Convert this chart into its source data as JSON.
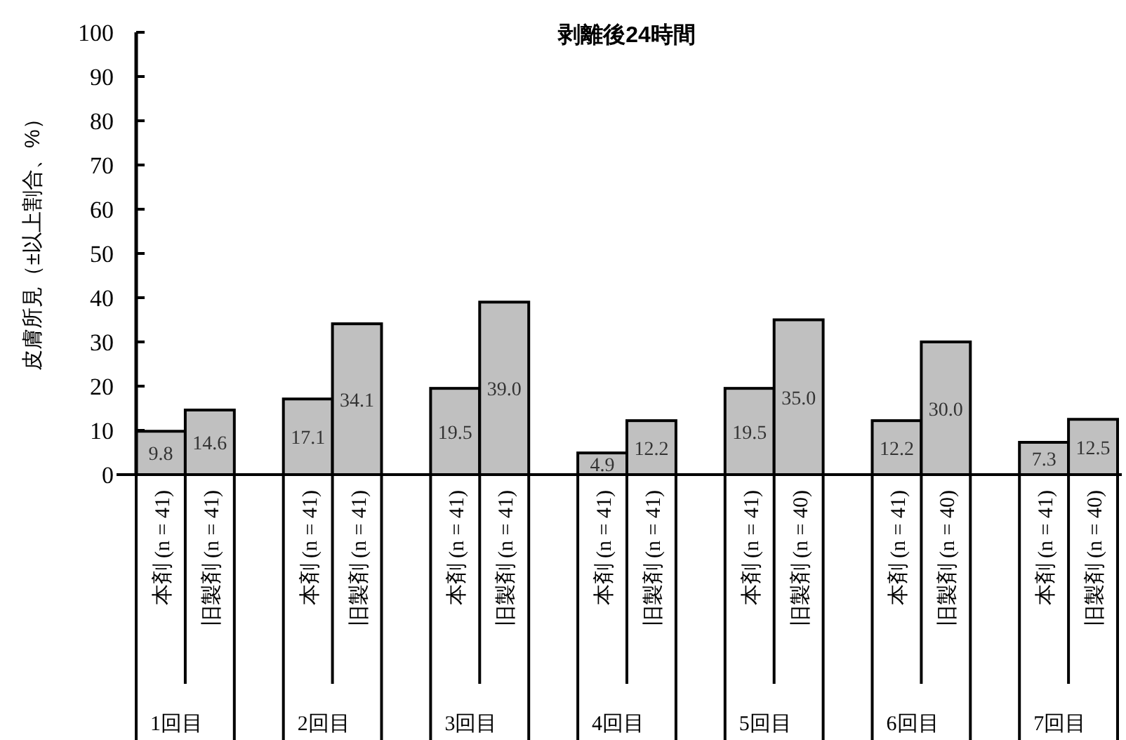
{
  "chart_data": {
    "type": "bar",
    "title": "剥離後24時間",
    "ylabel": "皮膚所見（±以上割合、%）",
    "categories": [
      "本剤 (n = 41)",
      "旧製剤 (n = 41)",
      "本剤 (n = 41)",
      "旧製剤 (n = 41)",
      "本剤 (n = 41)",
      "旧製剤 (n = 41)",
      "本剤 (n = 41)",
      "旧製剤 (n = 41)",
      "本剤 (n = 41)",
      "旧製剤 (n = 40)",
      "本剤 (n = 41)",
      "旧製剤 (n = 40)",
      "本剤 (n = 41)",
      "旧製剤 (n = 40)"
    ],
    "values": [
      9.8,
      14.6,
      17.1,
      34.1,
      19.5,
      39.0,
      4.9,
      12.2,
      19.5,
      35.0,
      12.2,
      30.0,
      7.3,
      12.5
    ],
    "value_labels": [
      "9.8",
      "14.6",
      "17.1",
      "34.1",
      "19.5",
      "39.0",
      "4.9",
      "12.2",
      "19.5",
      "35.0",
      "12.2",
      "30.0",
      "7.3",
      "12.5"
    ],
    "color": "#c0c0c0",
    "annotations": [
      "1回目",
      "2回目",
      "3回目",
      "4回目",
      "5回目",
      "6回目",
      "7回目"
    ],
    "ylim": [
      0,
      100
    ],
    "yticks": [
      0,
      10,
      20,
      30,
      40,
      50,
      60,
      70,
      80,
      90,
      100
    ],
    "grid": false
  }
}
